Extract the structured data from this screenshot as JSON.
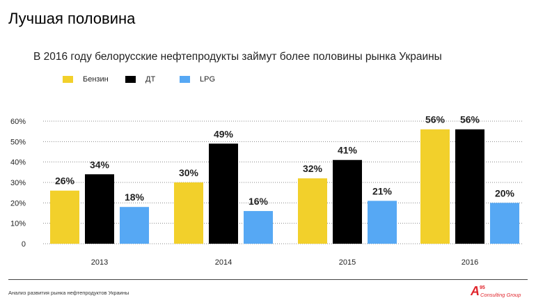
{
  "slide": {
    "title": "Лучшая половина",
    "subtitle": "В 2016 году белорусские нефтепродукты займут более половины рынка Украины",
    "footer": "Анализ развития рынка нефтепродуктов Украины",
    "logo": {
      "mark": "A",
      "superscript": "95",
      "text": "Consulting Group"
    }
  },
  "colors": {
    "benzin": "#F2D02B",
    "dt": "#000000",
    "lpg": "#56A8F4",
    "grid": "#888888",
    "logo": "#E0242B"
  },
  "chart_data": {
    "type": "bar",
    "title": "",
    "xlabel": "",
    "ylabel": "",
    "ylim": [
      0,
      60
    ],
    "yticks": [
      0,
      10,
      20,
      30,
      40,
      50,
      60
    ],
    "ytick_labels": [
      "0",
      "10%",
      "20%",
      "30%",
      "40%",
      "50%",
      "60%"
    ],
    "grid": true,
    "grid_style": "dotted",
    "legend_position": "top-left",
    "categories": [
      "2013",
      "2014",
      "2015",
      "2016"
    ],
    "series": [
      {
        "name": "Бензин",
        "color": "#F2D02B",
        "values": [
          26,
          30,
          32,
          56
        ],
        "labels": [
          "26%",
          "30%",
          "32%",
          "56%"
        ]
      },
      {
        "name": "ДТ",
        "color": "#000000",
        "values": [
          34,
          49,
          41,
          56
        ],
        "labels": [
          "34%",
          "49%",
          "41%",
          "56%"
        ]
      },
      {
        "name": "LPG",
        "color": "#56A8F4",
        "values": [
          18,
          16,
          21,
          20
        ],
        "labels": [
          "18%",
          "16%",
          "21%",
          "20%"
        ]
      }
    ]
  }
}
